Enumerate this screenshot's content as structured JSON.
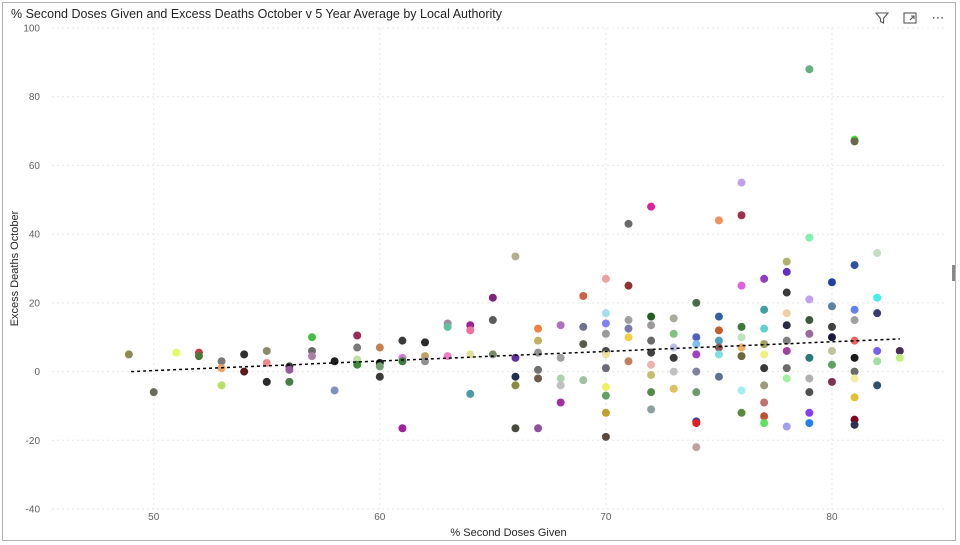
{
  "visual": {
    "title": "% Second Doses Given and Excess Deaths October v 5 Year Average by Local Authority",
    "icons": [
      "filter-icon",
      "focus-mode-icon",
      "more-options-icon"
    ],
    "more_label": "⋯"
  },
  "chart_data": {
    "type": "scatter",
    "title": "% Second Doses Given and Excess Deaths October v 5 Year Average by Local Authority",
    "xlabel": "% Second Doses Given",
    "ylabel": "Excess Deaths October",
    "xlim": [
      45.5,
      85
    ],
    "ylim": [
      -40,
      100
    ],
    "xticks": [
      50,
      60,
      70,
      80
    ],
    "yticks": [
      -40,
      -20,
      0,
      20,
      40,
      60,
      80,
      100
    ],
    "grid": true,
    "trendline": {
      "x": [
        49,
        83
      ],
      "y": [
        0,
        9.5
      ],
      "style": "dotted",
      "color": "#000000"
    },
    "points": [
      {
        "x": 48.9,
        "y": 5,
        "color": "#8b8b50"
      },
      {
        "x": 50,
        "y": -6,
        "color": "#6b6b5a"
      },
      {
        "x": 51,
        "y": 5.5,
        "color": "#dfff60"
      },
      {
        "x": 52,
        "y": 5.5,
        "color": "#c43b3b"
      },
      {
        "x": 52,
        "y": 4.5,
        "color": "#4a7a3a"
      },
      {
        "x": 53,
        "y": -4,
        "color": "#b7e067"
      },
      {
        "x": 53,
        "y": 3,
        "color": "#7a7a7a"
      },
      {
        "x": 53,
        "y": 1,
        "color": "#f0a060"
      },
      {
        "x": 54,
        "y": 5,
        "color": "#303030"
      },
      {
        "x": 54,
        "y": 0,
        "color": "#5a1a1a"
      },
      {
        "x": 55,
        "y": 6,
        "color": "#8a8a6a"
      },
      {
        "x": 55,
        "y": 2.5,
        "color": "#f08a8a"
      },
      {
        "x": 55,
        "y": -3,
        "color": "#2a2a2a"
      },
      {
        "x": 56,
        "y": 1.5,
        "color": "#3a3a3a"
      },
      {
        "x": 56,
        "y": -3,
        "color": "#4a7a4a"
      },
      {
        "x": 56,
        "y": 0.5,
        "color": "#9a5a9a"
      },
      {
        "x": 57,
        "y": 10,
        "color": "#40c040"
      },
      {
        "x": 57,
        "y": 6,
        "color": "#6a6a6a"
      },
      {
        "x": 57,
        "y": 4.5,
        "color": "#aa80aa"
      },
      {
        "x": 58,
        "y": 3,
        "color": "#202020"
      },
      {
        "x": 58,
        "y": -5.5,
        "color": "#8090c0"
      },
      {
        "x": 59,
        "y": 10.5,
        "color": "#9a2a5a"
      },
      {
        "x": 59,
        "y": 7,
        "color": "#7a7a7a"
      },
      {
        "x": 59,
        "y": 3.5,
        "color": "#c0e0a0"
      },
      {
        "x": 59,
        "y": 2,
        "color": "#3a8a3a"
      },
      {
        "x": 60,
        "y": 7,
        "color": "#c08050"
      },
      {
        "x": 60,
        "y": 2.5,
        "color": "#202020"
      },
      {
        "x": 60,
        "y": -1.5,
        "color": "#3a3a3a"
      },
      {
        "x": 60,
        "y": 1.5,
        "color": "#70a070"
      },
      {
        "x": 61,
        "y": 9,
        "color": "#3a3a3a"
      },
      {
        "x": 61,
        "y": 4,
        "color": "#d080d0"
      },
      {
        "x": 61,
        "y": 3,
        "color": "#3a7a3a"
      },
      {
        "x": 61,
        "y": -16.5,
        "color": "#a020a0"
      },
      {
        "x": 62,
        "y": 8.5,
        "color": "#2a2a2a"
      },
      {
        "x": 62,
        "y": 4.5,
        "color": "#c0a060"
      },
      {
        "x": 62,
        "y": 3,
        "color": "#909090"
      },
      {
        "x": 63,
        "y": 14,
        "color": "#9a8a9a"
      },
      {
        "x": 63,
        "y": 13,
        "color": "#60c0a0"
      },
      {
        "x": 63,
        "y": 4.5,
        "color": "#f080c0"
      },
      {
        "x": 64,
        "y": 13.5,
        "color": "#a02090"
      },
      {
        "x": 64,
        "y": 12,
        "color": "#f070a0"
      },
      {
        "x": 64,
        "y": -6.5,
        "color": "#4a9aaa"
      },
      {
        "x": 64,
        "y": 5,
        "color": "#e0e0a0"
      },
      {
        "x": 65,
        "y": 21.5,
        "color": "#802080"
      },
      {
        "x": 65,
        "y": 15,
        "color": "#5a5a5a"
      },
      {
        "x": 65,
        "y": 5,
        "color": "#7a8a6a"
      },
      {
        "x": 66,
        "y": 33.5,
        "color": "#b0b090"
      },
      {
        "x": 66,
        "y": 4,
        "color": "#6030a0"
      },
      {
        "x": 66,
        "y": -1.5,
        "color": "#203050"
      },
      {
        "x": 66,
        "y": -4,
        "color": "#8a8a40"
      },
      {
        "x": 66,
        "y": -16.5,
        "color": "#4a4a3a"
      },
      {
        "x": 67,
        "y": 12.5,
        "color": "#f08040"
      },
      {
        "x": 67,
        "y": 9,
        "color": "#c0b060"
      },
      {
        "x": 67,
        "y": 5.5,
        "color": "#909090"
      },
      {
        "x": 67,
        "y": 0.5,
        "color": "#707070"
      },
      {
        "x": 67,
        "y": -2,
        "color": "#6a5a4a"
      },
      {
        "x": 67,
        "y": -16.5,
        "color": "#9050a0"
      },
      {
        "x": 68,
        "y": 13.5,
        "color": "#b070c0"
      },
      {
        "x": 68,
        "y": 4,
        "color": "#a0a0a0"
      },
      {
        "x": 68,
        "y": -2,
        "color": "#b0d0b0"
      },
      {
        "x": 68,
        "y": -4,
        "color": "#c0c0c0"
      },
      {
        "x": 68,
        "y": -9,
        "color": "#a030a0"
      },
      {
        "x": 69,
        "y": 22,
        "color": "#d06040"
      },
      {
        "x": 69,
        "y": 13,
        "color": "#707090"
      },
      {
        "x": 69,
        "y": 8,
        "color": "#5a5a4a"
      },
      {
        "x": 69,
        "y": -2.5,
        "color": "#a0c0a0"
      },
      {
        "x": 70,
        "y": 27,
        "color": "#f0a0a0"
      },
      {
        "x": 70,
        "y": 17,
        "color": "#a0e0f0"
      },
      {
        "x": 70,
        "y": 14,
        "color": "#8080f0"
      },
      {
        "x": 70,
        "y": 11,
        "color": "#9a9a9a"
      },
      {
        "x": 70,
        "y": 6,
        "color": "#4a4a4a"
      },
      {
        "x": 70,
        "y": 5,
        "color": "#f0e0a0"
      },
      {
        "x": 70,
        "y": 1,
        "color": "#6a6a7a"
      },
      {
        "x": 70,
        "y": -4.5,
        "color": "#f0f060"
      },
      {
        "x": 70,
        "y": -7,
        "color": "#60a060"
      },
      {
        "x": 70,
        "y": -12,
        "color": "#c0a030"
      },
      {
        "x": 70,
        "y": -19,
        "color": "#5a4a3a"
      },
      {
        "x": 71,
        "y": 43,
        "color": "#6a6a6a"
      },
      {
        "x": 71,
        "y": 25,
        "color": "#903030"
      },
      {
        "x": 71,
        "y": 15,
        "color": "#a0a0a0"
      },
      {
        "x": 71,
        "y": 12.5,
        "color": "#7a7aaa"
      },
      {
        "x": 71,
        "y": 10,
        "color": "#f0d040"
      },
      {
        "x": 71,
        "y": 3,
        "color": "#c08060"
      },
      {
        "x": 72,
        "y": 48,
        "color": "#e020a0"
      },
      {
        "x": 72,
        "y": 16,
        "color": "#206020"
      },
      {
        "x": 72,
        "y": 13.5,
        "color": "#9a9a9a"
      },
      {
        "x": 72,
        "y": 9,
        "color": "#6a6a6a"
      },
      {
        "x": 72,
        "y": 5.5,
        "color": "#404040"
      },
      {
        "x": 72,
        "y": 2,
        "color": "#f0b0b0"
      },
      {
        "x": 72,
        "y": -1,
        "color": "#c0c070"
      },
      {
        "x": 72,
        "y": -6,
        "color": "#5a8a4a"
      },
      {
        "x": 72,
        "y": -11,
        "color": "#90a0a0"
      },
      {
        "x": 73,
        "y": 15.5,
        "color": "#aaaa9a"
      },
      {
        "x": 73,
        "y": 11,
        "color": "#80c080"
      },
      {
        "x": 73,
        "y": 7,
        "color": "#c0c0f0"
      },
      {
        "x": 73,
        "y": 4,
        "color": "#3a3a3a"
      },
      {
        "x": 73,
        "y": 0,
        "color": "#c0c0c0"
      },
      {
        "x": 73,
        "y": -5,
        "color": "#e0c060"
      },
      {
        "x": 74,
        "y": 20,
        "color": "#4a6a4a"
      },
      {
        "x": 74,
        "y": 10,
        "color": "#5060c0"
      },
      {
        "x": 74,
        "y": 8,
        "color": "#80c0f0"
      },
      {
        "x": 74,
        "y": 5,
        "color": "#a040c0"
      },
      {
        "x": 74,
        "y": 0,
        "color": "#8080a0"
      },
      {
        "x": 74,
        "y": -6,
        "color": "#6a9a6a"
      },
      {
        "x": 74,
        "y": -14.5,
        "color": "#4040a0"
      },
      {
        "x": 74,
        "y": -15,
        "color": "#e02020"
      },
      {
        "x": 74,
        "y": -22,
        "color": "#c0a0a0"
      },
      {
        "x": 75,
        "y": 44,
        "color": "#f09060"
      },
      {
        "x": 75,
        "y": 16,
        "color": "#3060a0"
      },
      {
        "x": 75,
        "y": 12,
        "color": "#c06030"
      },
      {
        "x": 75,
        "y": 9,
        "color": "#50a0c0"
      },
      {
        "x": 75,
        "y": 7,
        "color": "#8a5a5a"
      },
      {
        "x": 75,
        "y": 5,
        "color": "#80e0e0"
      },
      {
        "x": 75,
        "y": -1.5,
        "color": "#607090"
      },
      {
        "x": 76,
        "y": 55,
        "color": "#c0a0f0"
      },
      {
        "x": 76,
        "y": 45.5,
        "color": "#a03050"
      },
      {
        "x": 76,
        "y": 25,
        "color": "#e060e0"
      },
      {
        "x": 76,
        "y": 13,
        "color": "#3a7a3a"
      },
      {
        "x": 76,
        "y": 10,
        "color": "#c0e0c0"
      },
      {
        "x": 76,
        "y": 7,
        "color": "#f0b060"
      },
      {
        "x": 76,
        "y": 4.5,
        "color": "#6a6a3a"
      },
      {
        "x": 76,
        "y": -5.5,
        "color": "#a0f0f0"
      },
      {
        "x": 76,
        "y": -12,
        "color": "#5a8a3a"
      },
      {
        "x": 77,
        "y": 27,
        "color": "#9040c0"
      },
      {
        "x": 77,
        "y": 18,
        "color": "#40a0a0"
      },
      {
        "x": 77,
        "y": 12.5,
        "color": "#60d0d0"
      },
      {
        "x": 77,
        "y": 8,
        "color": "#a0a060"
      },
      {
        "x": 77,
        "y": 5,
        "color": "#f0f080"
      },
      {
        "x": 77,
        "y": 1,
        "color": "#3a3a3a"
      },
      {
        "x": 77,
        "y": -4,
        "color": "#9a9a7a"
      },
      {
        "x": 77,
        "y": -9,
        "color": "#c07070"
      },
      {
        "x": 77,
        "y": -13,
        "color": "#c05030"
      },
      {
        "x": 77,
        "y": -15,
        "color": "#60e060"
      },
      {
        "x": 78,
        "y": 32,
        "color": "#b0b070"
      },
      {
        "x": 78,
        "y": 29,
        "color": "#6030c0"
      },
      {
        "x": 78,
        "y": 23,
        "color": "#3a3a3a"
      },
      {
        "x": 78,
        "y": 17,
        "color": "#f0d0a0"
      },
      {
        "x": 78,
        "y": 13.5,
        "color": "#2a2a4a"
      },
      {
        "x": 78,
        "y": 9,
        "color": "#808080"
      },
      {
        "x": 78,
        "y": 6,
        "color": "#a040a0"
      },
      {
        "x": 78,
        "y": 1,
        "color": "#6a6a6a"
      },
      {
        "x": 78,
        "y": -2,
        "color": "#a0f0a0"
      },
      {
        "x": 78,
        "y": -16,
        "color": "#a0a0f0"
      },
      {
        "x": 79,
        "y": 88,
        "color": "#60b080"
      },
      {
        "x": 79,
        "y": 39,
        "color": "#80f0b0"
      },
      {
        "x": 79,
        "y": 21,
        "color": "#c0a0f0"
      },
      {
        "x": 79,
        "y": 15,
        "color": "#3a5a3a"
      },
      {
        "x": 79,
        "y": 11,
        "color": "#9a6a9a"
      },
      {
        "x": 79,
        "y": 4,
        "color": "#2a7a7a"
      },
      {
        "x": 79,
        "y": -2,
        "color": "#b0b0b0"
      },
      {
        "x": 79,
        "y": -6,
        "color": "#505050"
      },
      {
        "x": 79,
        "y": -12,
        "color": "#8040f0"
      },
      {
        "x": 79,
        "y": -15,
        "color": "#2080f0"
      },
      {
        "x": 80,
        "y": 26,
        "color": "#2040a0"
      },
      {
        "x": 80,
        "y": 19,
        "color": "#6080a0"
      },
      {
        "x": 80,
        "y": 13,
        "color": "#404040"
      },
      {
        "x": 80,
        "y": 10,
        "color": "#1a1a3a"
      },
      {
        "x": 80,
        "y": 6,
        "color": "#c0c0a0"
      },
      {
        "x": 80,
        "y": 2,
        "color": "#60a060"
      },
      {
        "x": 80,
        "y": -3,
        "color": "#803050"
      },
      {
        "x": 81,
        "y": 67.5,
        "color": "#40e040"
      },
      {
        "x": 81,
        "y": 67,
        "color": "#6a6a4a"
      },
      {
        "x": 81,
        "y": 31,
        "color": "#3050a0"
      },
      {
        "x": 81,
        "y": 18,
        "color": "#6080f0"
      },
      {
        "x": 81,
        "y": 15,
        "color": "#a0a0a0"
      },
      {
        "x": 81,
        "y": 9,
        "color": "#f06060"
      },
      {
        "x": 81,
        "y": 4,
        "color": "#1a1a1a"
      },
      {
        "x": 81,
        "y": 0,
        "color": "#6a6a6a"
      },
      {
        "x": 81,
        "y": -2,
        "color": "#f0f0a0"
      },
      {
        "x": 81,
        "y": -7.5,
        "color": "#e0c030"
      },
      {
        "x": 81,
        "y": -14,
        "color": "#800020"
      },
      {
        "x": 81,
        "y": -15.5,
        "color": "#303050"
      },
      {
        "x": 82,
        "y": 34.5,
        "color": "#c0e0c0"
      },
      {
        "x": 82,
        "y": 21.5,
        "color": "#40f0f0"
      },
      {
        "x": 82,
        "y": 17,
        "color": "#3a3a7a"
      },
      {
        "x": 82,
        "y": 6,
        "color": "#7a60f0"
      },
      {
        "x": 82,
        "y": 3,
        "color": "#a0e0a0"
      },
      {
        "x": 82,
        "y": -4,
        "color": "#305070"
      },
      {
        "x": 83,
        "y": 6,
        "color": "#4a2a5a"
      },
      {
        "x": 83,
        "y": 4,
        "color": "#c0f080"
      }
    ]
  }
}
